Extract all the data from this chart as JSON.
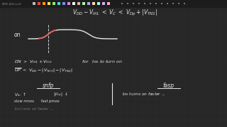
{
  "bg_color": "#272727",
  "grid_color": "#353535",
  "toolbar_bg": "#1c1c1c",
  "white": "#e8e8e8",
  "pink": "#e06060",
  "fig_width": 3.2,
  "fig_height": 1.8,
  "dpi": 100,
  "toolbar_colors": [
    "#bbbbbb",
    "#ee4444",
    "#ff9900",
    "#eeee44",
    "#88ee88",
    "#44dddd",
    "#8888ee",
    "#dd88dd",
    "#ffffff",
    "#ffaaaa",
    "#aaffaa",
    "#aaaaff",
    "#ffddaa",
    "#aaffdd",
    "#ddaaff",
    "#ffaacc"
  ],
  "toolbar_icon_colors2": [
    "#aaaaaa",
    "#cccccc",
    "#888888",
    "#aaaaaa",
    "#cccccc",
    "#888888"
  ],
  "filename": "BIOPD_2024-Lec11",
  "top_formula": "V_DD - V_th1  <  V_C  <  V_Dp + |V_TN2|",
  "on_label": "on",
  "eq1_a": "DN  >  V_th1 + V_th2",
  "eq1_b": "for   I_DN to turn on",
  "eq2": "UP  <  V_DD - |V_TH3| - |V_TN2|",
  "snfp_label": "snfp",
  "fasp_label": "fasp",
  "snfp_sub1a": "V_tn",
  "snfp_sub1b": "|V_tp|",
  "snfp_sub2": "slow nmos     fast pmos",
  "fasp_sub1": "I_DN turns on faster ..."
}
